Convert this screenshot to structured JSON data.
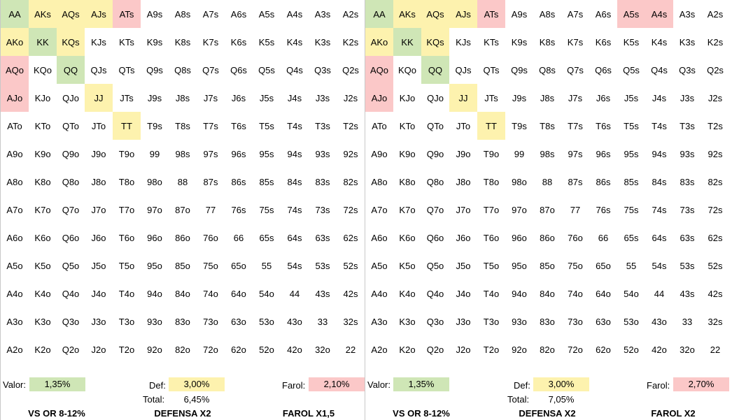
{
  "ranks": [
    "A",
    "K",
    "Q",
    "J",
    "T",
    "9",
    "8",
    "7",
    "6",
    "5",
    "4",
    "3",
    "2"
  ],
  "colors": {
    "green": "#cfe6b6",
    "yellow": "#fdf2ae",
    "red": "#fbc8c8"
  },
  "panels": [
    {
      "highlights": {
        "AA": "green",
        "AKs": "yellow",
        "AQs": "yellow",
        "AJs": "yellow",
        "ATs": "red",
        "AKo": "yellow",
        "KK": "green",
        "KQs": "yellow",
        "AQo": "red",
        "QQ": "green",
        "AJo": "red",
        "JJ": "yellow",
        "TT": "yellow"
      },
      "valor_label": "Valor:",
      "valor": "1,35%",
      "def_label": "Def:",
      "def": "3,00%",
      "total_label": "Total:",
      "total": "6,45%",
      "farol_label": "Farol:",
      "farol": "2,10%",
      "title_left": "VS OR 8-12%",
      "title_mid": "DEFENSA X2",
      "title_right": "FAROL X1,5"
    },
    {
      "highlights": {
        "AA": "green",
        "AKs": "yellow",
        "AQs": "yellow",
        "AJs": "yellow",
        "ATs": "red",
        "A5s": "red",
        "A4s": "red",
        "AKo": "yellow",
        "KK": "green",
        "KQs": "yellow",
        "AQo": "red",
        "QQ": "green",
        "AJo": "red",
        "JJ": "yellow",
        "TT": "yellow"
      },
      "valor_label": "Valor:",
      "valor": "1,35%",
      "def_label": "Def:",
      "def": "3,00%",
      "total_label": "Total:",
      "total": "7,05%",
      "farol_label": "Farol:",
      "farol": "2,70%",
      "title_left": "VS OR 8-12%",
      "title_mid": "DEFENSA X2",
      "title_right": "FAROL X2"
    }
  ]
}
